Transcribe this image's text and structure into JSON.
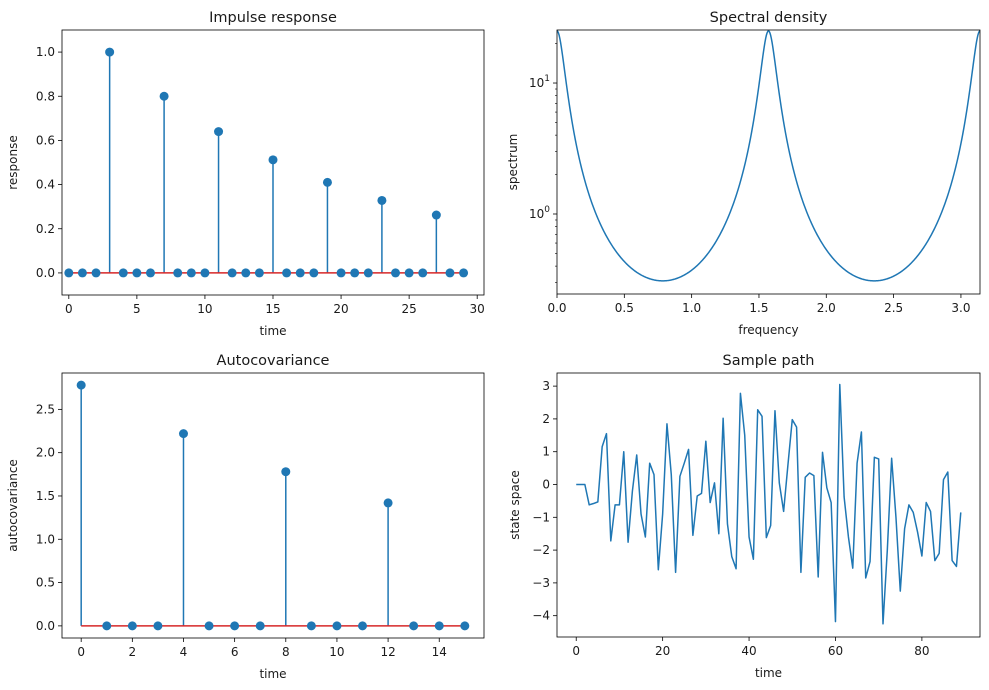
{
  "figure": {
    "colors": {
      "line": "#1f77b4",
      "baseline": "#d62728",
      "axis": "#000000"
    }
  },
  "chart_data": [
    {
      "id": "impulse",
      "type": "stem",
      "title": "Impulse response",
      "xlabel": "time",
      "ylabel": "response",
      "xlim": [
        -0.5,
        30.5
      ],
      "ylim": [
        -0.1,
        1.1
      ],
      "xticks": [
        0,
        5,
        10,
        15,
        20,
        25,
        30
      ],
      "xtick_labels": [
        "0",
        "5",
        "10",
        "15",
        "20",
        "25",
        "30"
      ],
      "yticks": [
        0.0,
        0.2,
        0.4,
        0.6,
        0.8,
        1.0
      ],
      "ytick_labels": [
        "0.0",
        "0.2",
        "0.4",
        "0.6",
        "0.8",
        "1.0"
      ],
      "x": [
        0,
        1,
        2,
        3,
        4,
        5,
        6,
        7,
        8,
        9,
        10,
        11,
        12,
        13,
        14,
        15,
        16,
        17,
        18,
        19,
        20,
        21,
        22,
        23,
        24,
        25,
        26,
        27,
        28,
        29
      ],
      "y": [
        0,
        0,
        0,
        1.0,
        0,
        0,
        0,
        0.8,
        0,
        0,
        0,
        0.64,
        0,
        0,
        0,
        0.512,
        0,
        0,
        0,
        0.41,
        0,
        0,
        0,
        0.328,
        0,
        0,
        0,
        0.262,
        0,
        0
      ]
    },
    {
      "id": "spectral",
      "type": "line",
      "title": "Spectral density",
      "xlabel": "frequency",
      "ylabel": "spectrum",
      "yscale": "log",
      "xlim": [
        0,
        3.1416
      ],
      "ylim": [
        0.245,
        25.4
      ],
      "xticks": [
        0,
        0.5,
        1.0,
        1.5,
        2.0,
        2.5,
        3.0
      ],
      "xtick_labels": [
        "0.0",
        "0.5",
        "1.0",
        "1.5",
        "2.0",
        "2.5",
        "3.0"
      ],
      "yticks": [
        1,
        10
      ],
      "ytick_labels": [
        "10^0",
        "10^1"
      ],
      "model": "1/|1-0.8e^(-4iω)|^2",
      "x_samples": [
        0,
        0.1,
        0.2,
        0.3,
        0.4,
        0.5,
        0.6,
        0.7,
        0.785,
        0.9,
        1.0,
        1.1,
        1.2,
        1.3,
        1.4,
        1.5,
        1.571,
        1.65,
        1.75,
        1.85,
        1.95,
        2.05,
        2.15,
        2.25,
        2.356,
        2.45,
        2.55,
        2.65,
        2.75,
        2.85,
        2.95,
        3.05,
        3.1416
      ],
      "y_samples": [
        25.0,
        4.86,
        1.6,
        0.79,
        0.49,
        0.37,
        0.32,
        0.31,
        0.309,
        0.32,
        0.37,
        0.49,
        0.79,
        1.6,
        4.86,
        17.0,
        25.0,
        11.0,
        3.4,
        1.3,
        0.68,
        0.43,
        0.33,
        0.31,
        0.309,
        0.32,
        0.39,
        0.58,
        1.1,
        2.6,
        8.2,
        22.0,
        25.0
      ]
    },
    {
      "id": "autocov",
      "type": "stem",
      "title": "Autocovariance",
      "xlabel": "time",
      "ylabel": "autocovariance",
      "xlim": [
        -0.75,
        15.75
      ],
      "ylim": [
        -0.14,
        2.92
      ],
      "xticks": [
        0,
        2,
        4,
        6,
        8,
        10,
        12,
        14
      ],
      "xtick_labels": [
        "0",
        "2",
        "4",
        "6",
        "8",
        "10",
        "12",
        "14"
      ],
      "yticks": [
        0.0,
        0.5,
        1.0,
        1.5,
        2.0,
        2.5
      ],
      "ytick_labels": [
        "0.0",
        "0.5",
        "1.0",
        "1.5",
        "2.0",
        "2.5"
      ],
      "x": [
        0,
        1,
        2,
        3,
        4,
        5,
        6,
        7,
        8,
        9,
        10,
        11,
        12,
        13,
        14,
        15
      ],
      "y": [
        2.78,
        0,
        0,
        0,
        2.22,
        0,
        0,
        0,
        1.78,
        0,
        0,
        0,
        1.42,
        0,
        0,
        0
      ]
    },
    {
      "id": "sample",
      "type": "line",
      "title": "Sample path",
      "xlabel": "time",
      "ylabel": "state space",
      "xlim": [
        -4.45,
        93.45
      ],
      "ylim": [
        -4.65,
        3.4
      ],
      "xticks": [
        0,
        20,
        40,
        60,
        80
      ],
      "xtick_labels": [
        "0",
        "20",
        "40",
        "60",
        "80"
      ],
      "yticks": [
        -4,
        -3,
        -2,
        -1,
        0,
        1,
        2,
        3
      ],
      "ytick_labels": [
        "−4",
        "−3",
        "−2",
        "−1",
        "0",
        "1",
        "2",
        "3"
      ],
      "y": [
        0,
        0,
        0,
        -0.62,
        -0.58,
        -0.53,
        1.15,
        1.55,
        -1.72,
        -0.62,
        -0.62,
        1.0,
        -1.76,
        -0.2,
        0.9,
        -0.9,
        -1.6,
        0.65,
        0.3,
        -2.6,
        -0.9,
        1.85,
        0.3,
        -2.68,
        0.25,
        0.65,
        1.07,
        -1.55,
        -0.35,
        -0.27,
        1.32,
        -0.55,
        0.05,
        -1.5,
        2.02,
        -1.2,
        -2.2,
        -2.57,
        2.78,
        1.5,
        -1.6,
        -2.28,
        2.28,
        2.08,
        -1.62,
        -1.25,
        2.25,
        0.05,
        -0.82,
        0.6,
        1.98,
        1.75,
        -2.68,
        0.22,
        0.35,
        0.27,
        -2.82,
        0.98,
        -0.1,
        -0.55,
        -4.18,
        3.05,
        -0.38,
        -1.6,
        -2.55,
        0.65,
        1.6,
        -2.85,
        -2.35,
        0.83,
        0.78,
        -4.25,
        -2.0,
        0.8,
        -1.0,
        -3.25,
        -1.35,
        -0.62,
        -0.85,
        -1.45,
        -2.18,
        -0.55,
        -0.82,
        -2.32,
        -2.1,
        0.15,
        0.38,
        -2.32,
        -2.5,
        -0.85
      ]
    }
  ]
}
